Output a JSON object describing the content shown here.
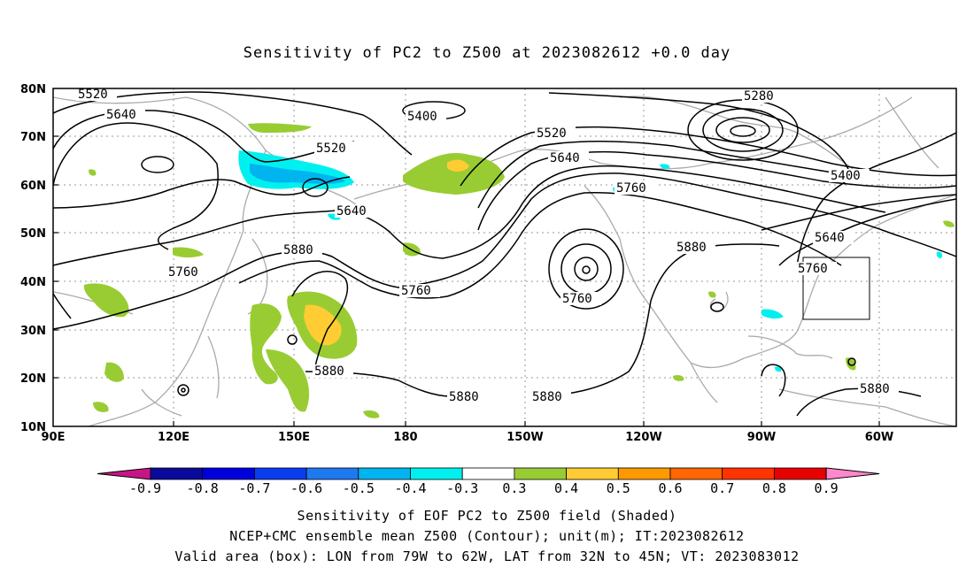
{
  "title": "Sensitivity of PC2 to Z500 at 2023082612 +0.0 day",
  "lat_labels": [
    "80N",
    "70N",
    "60N",
    "50N",
    "40N",
    "30N",
    "20N",
    "10N"
  ],
  "lon_labels": [
    "90E",
    "120E",
    "150E",
    "180",
    "150W",
    "120W",
    "90W",
    "60W"
  ],
  "colorbar": {
    "labels": [
      "-0.9",
      "-0.8",
      "-0.7",
      "-0.6",
      "-0.5",
      "-0.4",
      "-0.3",
      "0.3",
      "0.4",
      "0.5",
      "0.6",
      "0.7",
      "0.8",
      "0.9"
    ],
    "colors": [
      "#c71585",
      "#0a0a9a",
      "#0000dc",
      "#0a3cf0",
      "#1e78f0",
      "#00b4f0",
      "#00f0f0",
      "#ffffff",
      "#99cc33",
      "#ffcc33",
      "#ff9900",
      "#ff6600",
      "#ff3300",
      "#e60000",
      "#ff88cc"
    ]
  },
  "contour_labels": {
    "l5520a": "5520",
    "l5640a": "5640",
    "l5400a": "5400",
    "l5520b": "5520",
    "l5520c": "5520",
    "l5640b": "5640",
    "l5280": "5280",
    "l5400b": "5400",
    "l5760a": "5760",
    "l5640c": "5640",
    "l5880a": "5880",
    "l5760b": "5760",
    "l5760c": "5760",
    "l5760d": "5760",
    "l5880b": "5880",
    "l5760e": "5760",
    "l5880c": "5880",
    "l5880d": "5880",
    "l5880e": "5880",
    "l5880f": "5880"
  },
  "valid_box": {
    "lon_from": "79W",
    "lon_to": "62W",
    "lat_from": "32N",
    "lat_to": "45N"
  },
  "footer": {
    "line1": "Sensitivity of EOF PC2 to Z500 field (Shaded)",
    "line2": "NCEP+CMC ensemble mean Z500 (Contour); unit(m); IT:2023082612",
    "line3": "Valid area (box): LON from 79W to 62W, LAT from 32N to 45N; VT: 2023083012"
  }
}
